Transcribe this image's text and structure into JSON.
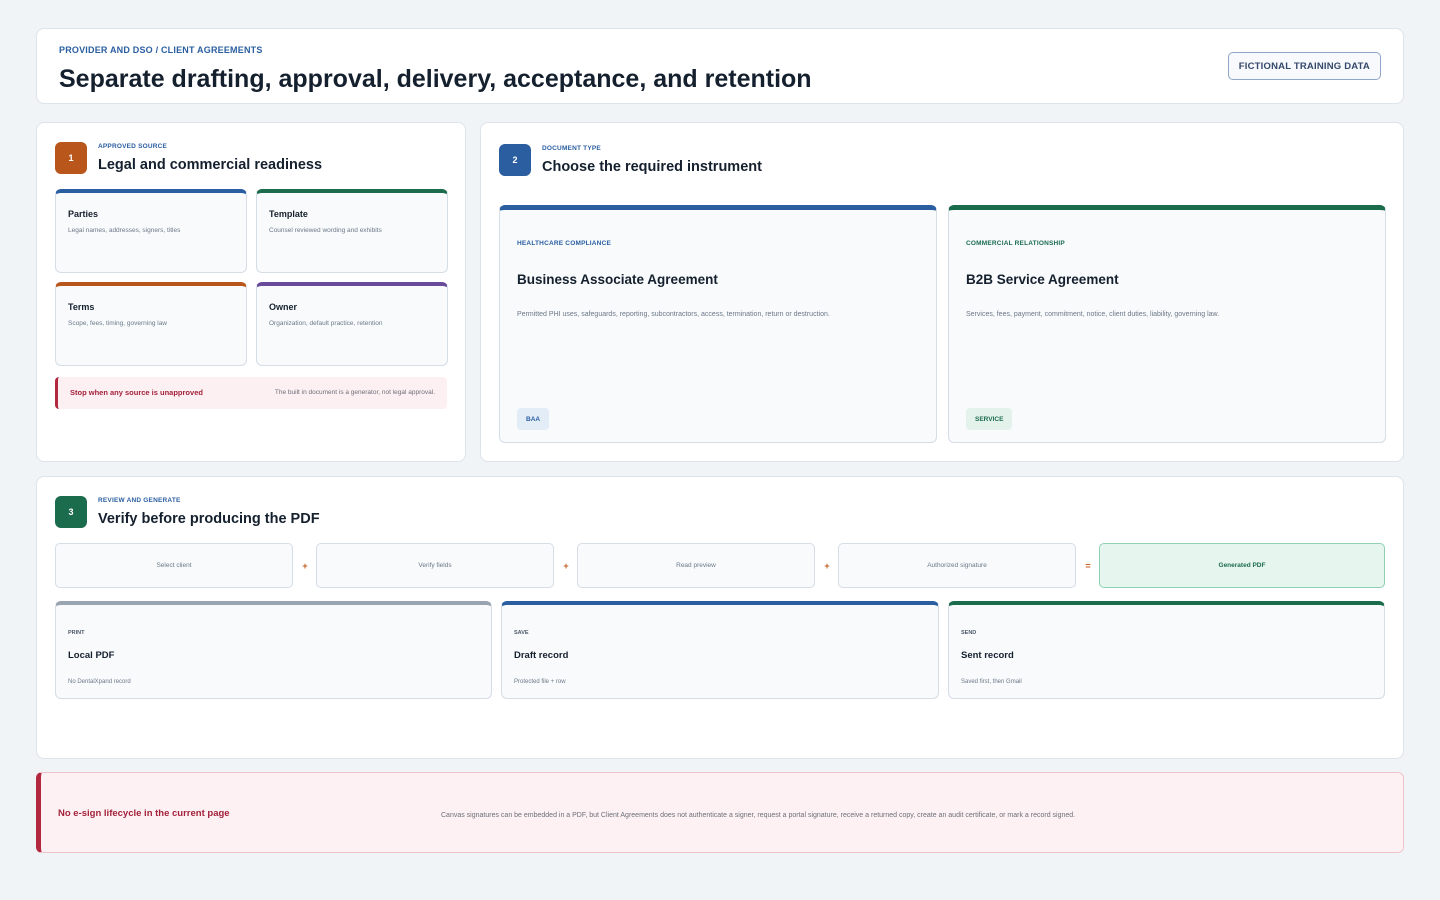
{
  "header": {
    "eyebrow": "PROVIDER AND DSO / CLIENT AGREEMENTS",
    "title": "Separate drafting, approval, delivery, acceptance, and retention",
    "badge": "FICTIONAL TRAINING DATA"
  },
  "source": {
    "step": "1",
    "eyebrow": "APPROVED SOURCE",
    "title": "Legal and commercial readiness",
    "items": [
      {
        "title": "Parties",
        "desc": "Legal names, addresses, signers, titles",
        "color": "#2a5ea0"
      },
      {
        "title": "Template",
        "desc": "Counsel reviewed wording and exhibits",
        "color": "#1b6b4d"
      },
      {
        "title": "Terms",
        "desc": "Scope, fees, timing, governing law",
        "color": "#b8561b"
      },
      {
        "title": "Owner",
        "desc": "Organization, default practice, retention",
        "color": "#6a4a9a"
      }
    ],
    "warning_title": "Stop when any source is unapproved",
    "warning_desc": "The built in document is a generator, not legal approval."
  },
  "doctype": {
    "step": "2",
    "eyebrow": "DOCUMENT TYPE",
    "title": "Choose the required instrument",
    "cards": [
      {
        "eyebrow": "HEALTHCARE COMPLIANCE",
        "title": "Business Associate Agreement",
        "desc": "Permitted PHI uses, safeguards, reporting, subcontractors, access, termination, return or destruction.",
        "tag": "BAA",
        "color": "#2a5ea0"
      },
      {
        "eyebrow": "COMMERCIAL RELATIONSHIP",
        "title": "B2B Service Agreement",
        "desc": "Services, fees, payment, commitment, notice, client duties, liability, governing law.",
        "tag": "SERVICE",
        "color": "#1b6b4d"
      }
    ]
  },
  "review": {
    "step": "3",
    "eyebrow": "REVIEW AND GENERATE",
    "title": "Verify before producing the PDF",
    "flow": [
      "Select client",
      "Verify fields",
      "Read preview",
      "Authorized signature",
      "Generated PDF"
    ],
    "ops": [
      "+",
      "+",
      "+",
      "="
    ],
    "outputs": [
      {
        "eyebrow": "PRINT",
        "title": "Local PDF",
        "desc": "No DentalXpand record",
        "color": "#9aa4b0"
      },
      {
        "eyebrow": "SAVE",
        "title": "Draft record",
        "desc": "Protected file + row",
        "color": "#2a5ea0"
      },
      {
        "eyebrow": "SEND",
        "title": "Sent record",
        "desc": "Saved first, then Gmail",
        "color": "#1b6b4d"
      }
    ]
  },
  "esign": {
    "title": "No e-sign lifecycle in the current page",
    "desc": "Canvas signatures can be embedded in a PDF, but Client Agreements does not authenticate a signer, request a portal signature, receive a returned copy, create an audit certificate, or mark a record signed."
  },
  "colors": {
    "step1": "#b8561b",
    "step2": "#2a5ea0",
    "step3": "#1b6b4d"
  }
}
